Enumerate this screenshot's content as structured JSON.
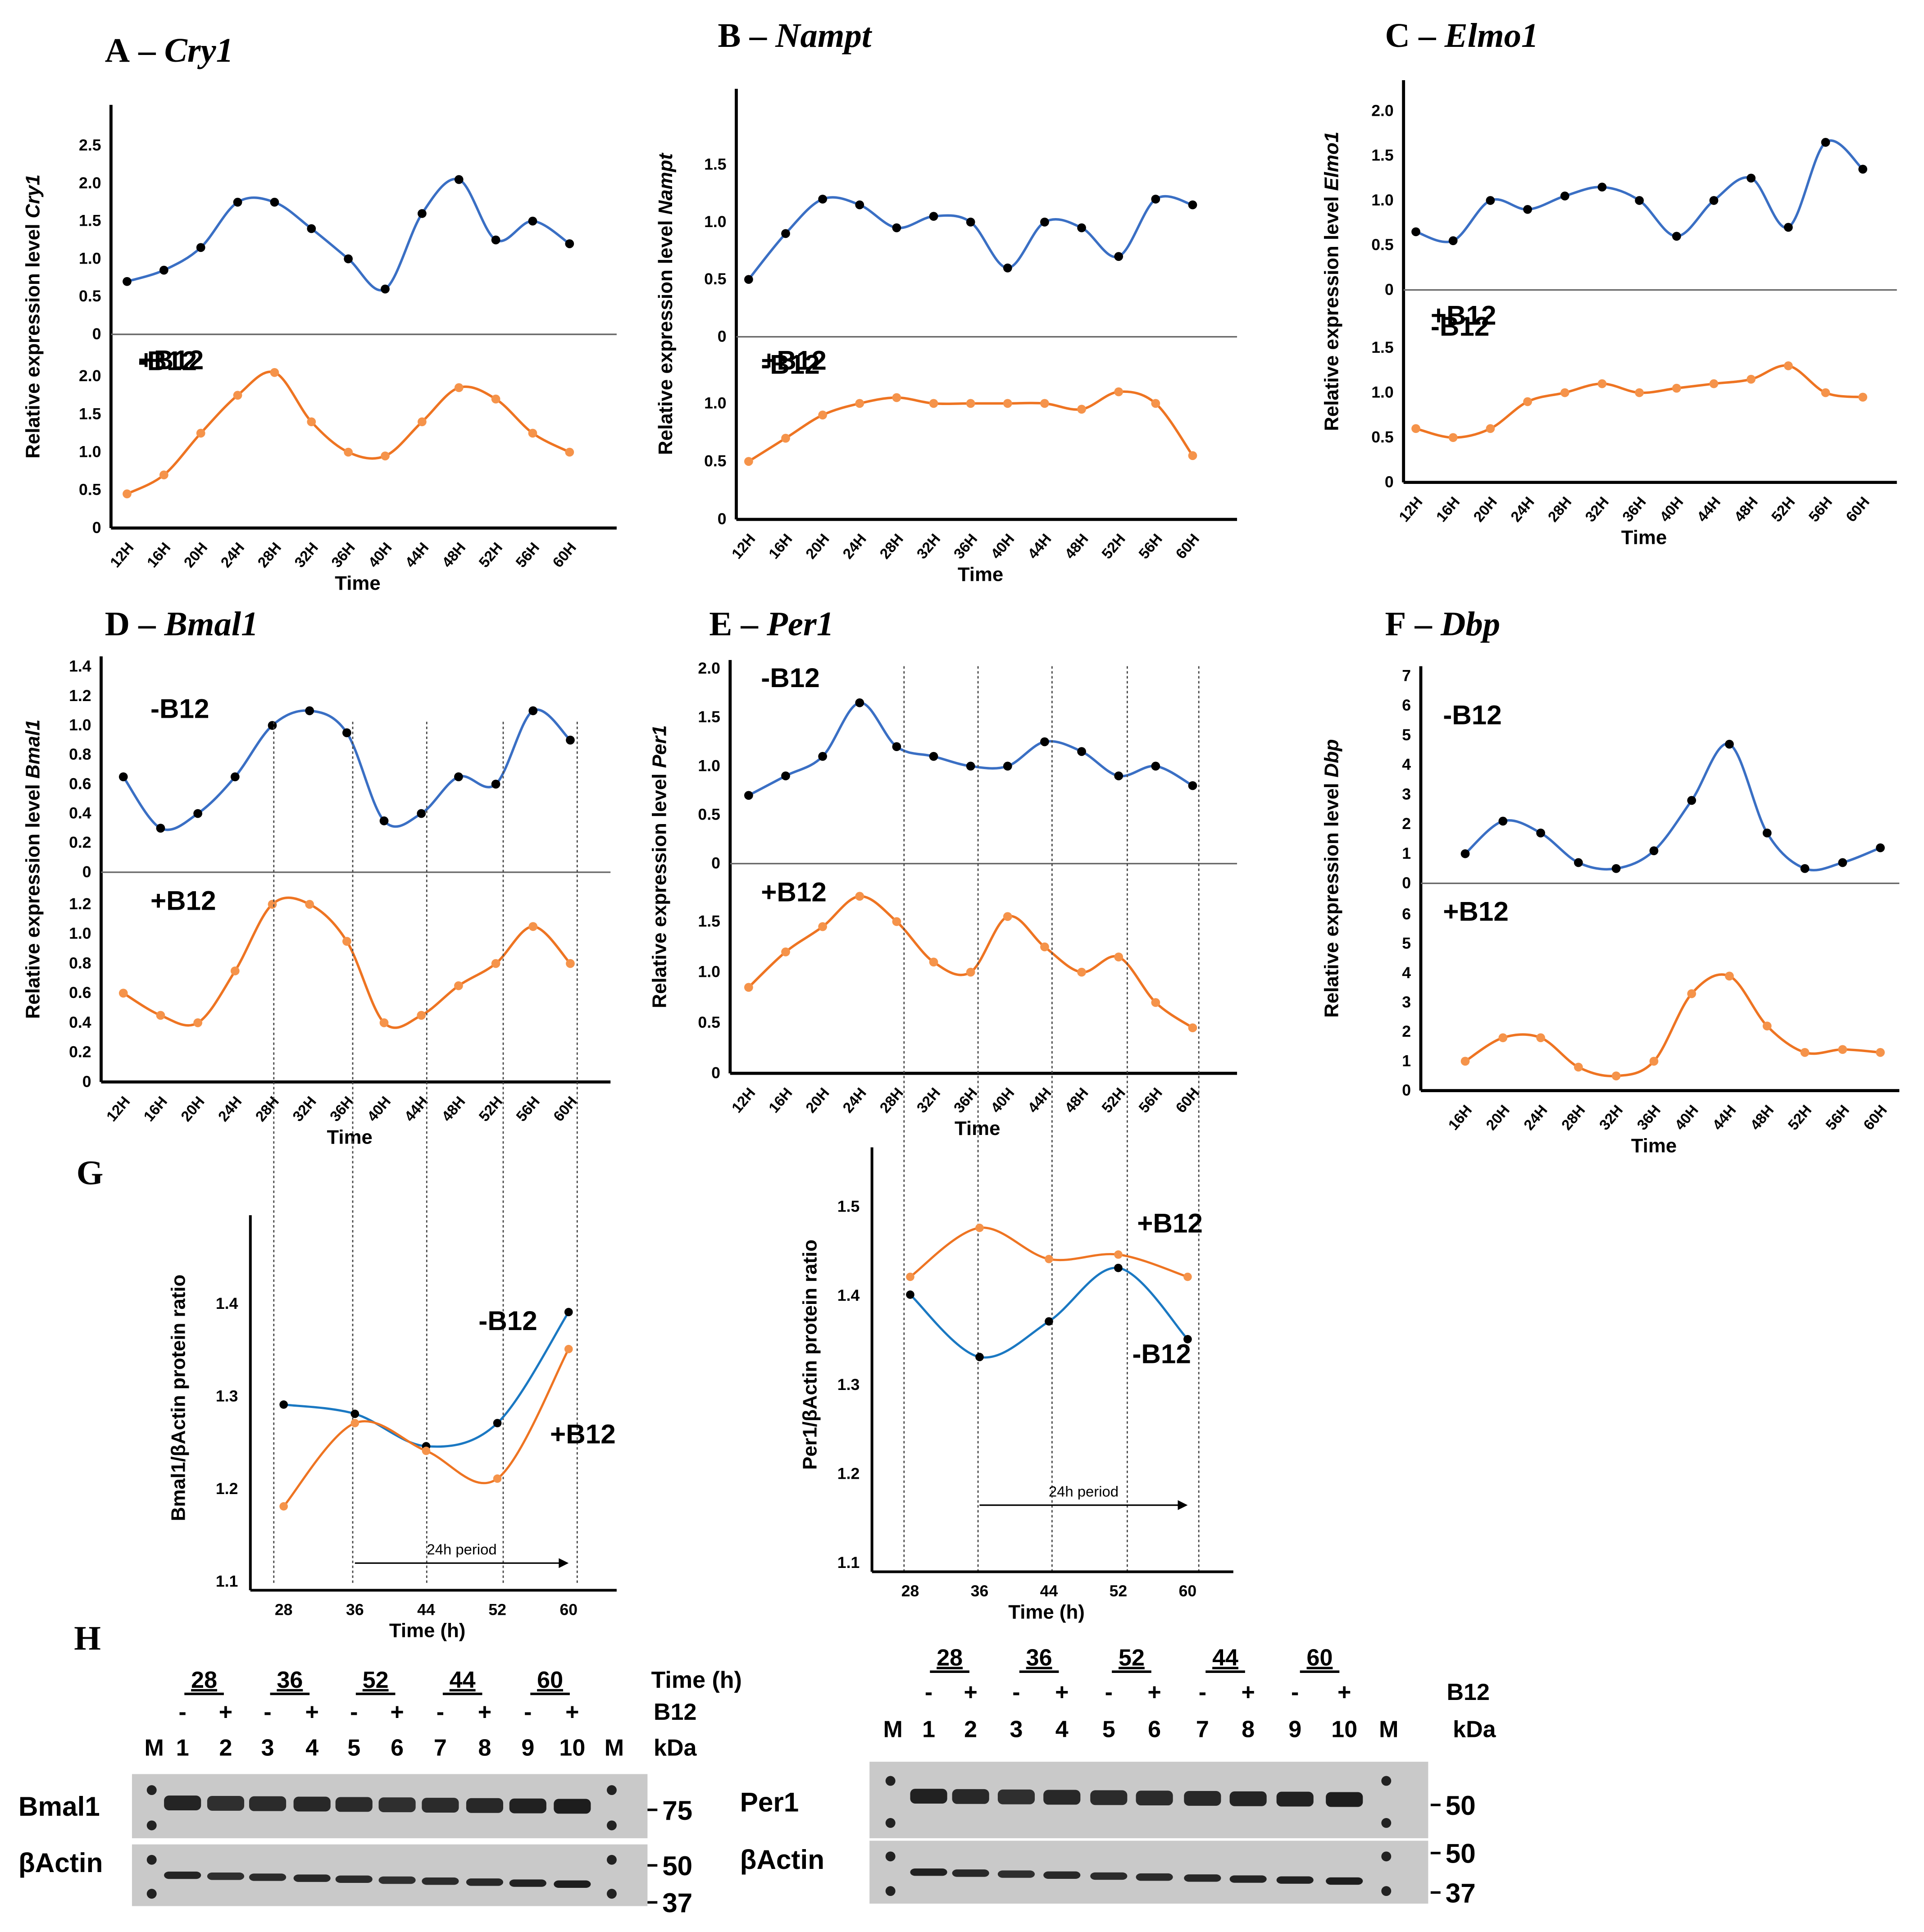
{
  "chart_data": [
    {
      "letter": "A",
      "gene": "Cry1",
      "type": "line",
      "ylabel": "Relative expression level ",
      "ylabel_gene": "Cry1",
      "xlabel": "Time",
      "x": [
        "12H",
        "16H",
        "20H",
        "24H",
        "28H",
        "32H",
        "36H",
        "40H",
        "44H",
        "48H",
        "52H",
        "56H",
        "60H"
      ],
      "yticks_top": [
        "0",
        "0.5",
        "1.0",
        "1.5",
        "2.0",
        "2.5"
      ],
      "yticks_bottom": [
        "0",
        "0.5",
        "1.0",
        "1.5",
        "2.0"
      ],
      "series": [
        {
          "name": "-B12",
          "color": "#3a6fc4",
          "dot": "#000000",
          "values": [
            0.7,
            0.85,
            1.15,
            1.75,
            1.75,
            1.4,
            1.0,
            0.6,
            1.6,
            2.05,
            1.25,
            1.5,
            1.2
          ]
        },
        {
          "name": "+B12",
          "color": "#ee7422",
          "dot": "#f5934a",
          "values": [
            0.45,
            0.7,
            1.25,
            1.75,
            2.05,
            1.4,
            1.0,
            0.95,
            1.4,
            1.85,
            1.7,
            1.25,
            1.0
          ]
        }
      ]
    },
    {
      "letter": "B",
      "gene": "Nampt",
      "type": "line",
      "ylabel": "Relative expression level ",
      "ylabel_gene": "Nampt",
      "xlabel": "Time",
      "x": [
        "12H",
        "16H",
        "20H",
        "24H",
        "28H",
        "32H",
        "36H",
        "40H",
        "44H",
        "48H",
        "52H",
        "56H",
        "60H"
      ],
      "yticks_top": [
        "0",
        "0.5",
        "1.0",
        "1.5"
      ],
      "yticks_bottom": [
        "0",
        "0.5",
        "1.0"
      ],
      "series": [
        {
          "name": "-B12",
          "color": "#3a6fc4",
          "dot": "#000000",
          "values": [
            0.5,
            0.9,
            1.2,
            1.15,
            0.95,
            1.05,
            1.0,
            0.6,
            1.0,
            0.95,
            0.7,
            1.2,
            1.15
          ]
        },
        {
          "name": "+B12",
          "color": "#ee7422",
          "dot": "#f5934a",
          "values": [
            0.5,
            0.7,
            0.9,
            1.0,
            1.05,
            1.0,
            1.0,
            1.0,
            1.0,
            0.95,
            1.1,
            1.0,
            0.55
          ]
        }
      ]
    },
    {
      "letter": "C",
      "gene": "Elmo1",
      "type": "line",
      "ylabel": "Relative expression level ",
      "ylabel_gene": "Elmo1",
      "xlabel": "Time",
      "x": [
        "12H",
        "16H",
        "20H",
        "24H",
        "28H",
        "32H",
        "36H",
        "40H",
        "44H",
        "48H",
        "52H",
        "56H",
        "60H"
      ],
      "yticks_top": [
        "0",
        "0.5",
        "1.0",
        "1.5",
        "2.0"
      ],
      "yticks_bottom": [
        "0",
        "0.5",
        "1.0",
        "1.5"
      ],
      "series": [
        {
          "name": "-B12",
          "color": "#3a6fc4",
          "dot": "#000000",
          "values": [
            0.65,
            0.55,
            1.0,
            0.9,
            1.05,
            1.15,
            1.0,
            0.6,
            1.0,
            1.25,
            0.7,
            1.65,
            1.35
          ]
        },
        {
          "name": "+B12",
          "color": "#ee7422",
          "dot": "#f5934a",
          "values": [
            0.6,
            0.5,
            0.6,
            0.9,
            1.0,
            1.1,
            1.0,
            1.05,
            1.1,
            1.15,
            1.3,
            1.0,
            0.95
          ]
        }
      ]
    },
    {
      "letter": "D",
      "gene": "Bmal1",
      "type": "line",
      "ylabel": "Relative expression level ",
      "ylabel_gene": "Bmal1",
      "xlabel": "Time",
      "x": [
        "12H",
        "16H",
        "20H",
        "24H",
        "28H",
        "32H",
        "36H",
        "40H",
        "44H",
        "48H",
        "52H",
        "56H",
        "60H"
      ],
      "yticks_top": [
        "0",
        "0.2",
        "0.4",
        "0.6",
        "0.8",
        "1.0",
        "1.2",
        "1.4"
      ],
      "yticks_bottom": [
        "0",
        "0.2",
        "0.4",
        "0.6",
        "0.8",
        "1.0",
        "1.2"
      ],
      "series": [
        {
          "name": "-B12",
          "color": "#3a6fc4",
          "dot": "#000000",
          "values": [
            0.65,
            0.3,
            0.4,
            0.65,
            1.0,
            1.1,
            0.95,
            0.35,
            0.4,
            0.65,
            0.6,
            1.1,
            0.9
          ]
        },
        {
          "name": "+B12",
          "color": "#ee7422",
          "dot": "#f5934a",
          "values": [
            0.6,
            0.45,
            0.4,
            0.75,
            1.2,
            1.2,
            0.95,
            0.4,
            0.45,
            0.65,
            0.8,
            1.05,
            0.8
          ]
        }
      ]
    },
    {
      "letter": "E",
      "gene": "Per1",
      "type": "line",
      "ylabel": "Relative expression level ",
      "ylabel_gene": "Per1",
      "xlabel": "Time",
      "x": [
        "12H",
        "16H",
        "20H",
        "24H",
        "28H",
        "32H",
        "36H",
        "40H",
        "44H",
        "48H",
        "52H",
        "56H",
        "60H"
      ],
      "yticks_top": [
        "0",
        "0.5",
        "1.0",
        "1.5",
        "2.0"
      ],
      "yticks_bottom": [
        "0",
        "0.5",
        "1.0",
        "1.5"
      ],
      "series": [
        {
          "name": "-B12",
          "color": "#3a6fc4",
          "dot": "#000000",
          "values": [
            0.7,
            0.9,
            1.1,
            1.65,
            1.2,
            1.1,
            1.0,
            1.0,
            1.25,
            1.15,
            0.9,
            1.0,
            0.8
          ]
        },
        {
          "name": "+B12",
          "color": "#ee7422",
          "dot": "#f5934a",
          "values": [
            0.85,
            1.2,
            1.45,
            1.75,
            1.5,
            1.1,
            1.0,
            1.55,
            1.25,
            1.0,
            1.15,
            0.7,
            0.45
          ]
        }
      ]
    },
    {
      "letter": "F",
      "gene": "Dbp",
      "type": "line",
      "ylabel": "Relative expression level ",
      "ylabel_gene": "Dbp",
      "xlabel": "Time",
      "x": [
        "16H",
        "20H",
        "24H",
        "28H",
        "32H",
        "36H",
        "40H",
        "44H",
        "48H",
        "52H",
        "56H",
        "60H"
      ],
      "yticks_top": [
        "0",
        "1",
        "2",
        "3",
        "4",
        "5",
        "6",
        "7"
      ],
      "yticks_bottom": [
        "0",
        "1",
        "2",
        "3",
        "4",
        "5",
        "6"
      ],
      "series": [
        {
          "name": "-B12",
          "color": "#3a6fc4",
          "dot": "#000000",
          "values": [
            1.0,
            2.1,
            1.7,
            0.7,
            0.5,
            1.1,
            2.8,
            4.7,
            1.7,
            0.5,
            0.7,
            1.2
          ]
        },
        {
          "name": "+B12",
          "color": "#ee7422",
          "dot": "#f5934a",
          "values": [
            1.0,
            1.8,
            1.8,
            0.8,
            0.5,
            1.0,
            3.3,
            3.9,
            2.2,
            1.3,
            1.4,
            1.3
          ]
        }
      ]
    },
    {
      "letter": "G",
      "type": "line",
      "ylabel": "Bmal1/βActin  protein ratio",
      "xlabel": "Time (h)",
      "x": [
        "28",
        "36",
        "44",
        "52",
        "60"
      ],
      "yticks": [
        "1.1",
        "1.2",
        "1.3",
        "1.4"
      ],
      "annotation": "24h period",
      "series": [
        {
          "name": "-B12",
          "color": "#1a78c2",
          "dot": "#000000",
          "values": [
            1.29,
            1.28,
            1.245,
            1.27,
            1.39
          ]
        },
        {
          "name": "+B12",
          "color": "#ee7422",
          "dot": "#f5934a",
          "values": [
            1.18,
            1.27,
            1.24,
            1.21,
            1.35
          ]
        }
      ]
    },
    {
      "letter": "",
      "type": "line",
      "ylabel": "Per1/βActin  protein ratio",
      "xlabel": "Time (h)",
      "x": [
        "28",
        "36",
        "44",
        "52",
        "60"
      ],
      "yticks": [
        "1.1",
        "1.2",
        "1.3",
        "1.4",
        "1.5"
      ],
      "annotation": "24h period",
      "series": [
        {
          "name": "-B12",
          "color": "#1a78c2",
          "dot": "#000000",
          "values": [
            1.4,
            1.33,
            1.37,
            1.43,
            1.35
          ]
        },
        {
          "name": "+B12",
          "color": "#ee7422",
          "dot": "#f5934a",
          "values": [
            1.42,
            1.475,
            1.44,
            1.445,
            1.42
          ]
        }
      ]
    }
  ],
  "western_blots": {
    "letter": "H",
    "time_label": "Time (h)",
    "b12_label": "B12",
    "kda_label": "kDa",
    "blots": [
      {
        "time_groups": [
          "28",
          "36",
          "52",
          "44",
          "60"
        ],
        "b12": [
          "-",
          "+",
          "-",
          "+",
          "-",
          "+",
          "-",
          "+",
          "-",
          "+"
        ],
        "lanes": [
          "M",
          "1",
          "2",
          "3",
          "4",
          "5",
          "6",
          "7",
          "8",
          "9",
          "10",
          "M"
        ],
        "protein": "Bmal1",
        "control": "βActin",
        "markers_top": [
          "75"
        ],
        "markers_bottom": [
          "50",
          "37"
        ],
        "band_intensity": [
          0.9,
          0.75,
          0.8,
          0.85,
          0.8,
          0.75,
          0.8,
          0.85,
          0.95,
          1.0
        ]
      },
      {
        "time_groups": [
          "28",
          "36",
          "52",
          "44",
          "60"
        ],
        "b12": [
          "-",
          "+",
          "-",
          "+",
          "-",
          "+",
          "-",
          "+",
          "-",
          "+"
        ],
        "lanes": [
          "M",
          "1",
          "2",
          "3",
          "4",
          "5",
          "6",
          "7",
          "8",
          "9",
          "10",
          "M"
        ],
        "protein": "Per1",
        "control": "βActin",
        "markers_top": [
          "50"
        ],
        "markers_bottom": [
          "50",
          "37"
        ],
        "band_intensity": [
          0.95,
          0.85,
          0.75,
          0.85,
          0.8,
          0.8,
          0.85,
          0.9,
          0.95,
          1.0
        ]
      }
    ]
  }
}
